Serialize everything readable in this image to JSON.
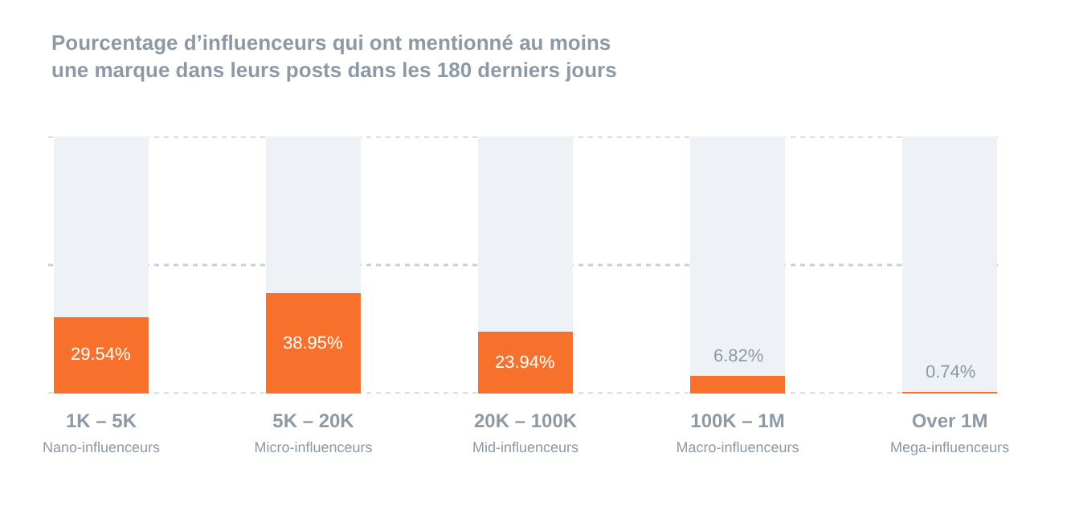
{
  "chart_data": {
    "type": "bar",
    "stacked": true,
    "title": "Pourcentage d’influenceurs qui ont mentionné au moins\nune marque dans leurs posts dans les 180 derniers jours",
    "categories": [
      "1K – 5K\nNano-influenceurs",
      "5K – 20K\nMicro-influenceurs",
      "20K – 100K\nMid-influenceurs",
      "100K – 1M\nMacro-influenceurs",
      "Over 1M\nMega-influenceurs"
    ],
    "series": [
      {
        "color": "#f7702c",
        "values": [
          29.54,
          38.95,
          23.94,
          6.82,
          0.74
        ],
        "value_labels": [
          "29.54%",
          "38.95%",
          "23.94%",
          "6.82%",
          "0.74%"
        ]
      },
      {
        "color": "#eef1f5",
        "values": [
          70.46,
          61.05,
          76.06,
          93.18,
          99.26
        ]
      }
    ],
    "ylim": [
      0,
      100
    ],
    "yticks": [
      {
        "value": 0,
        "label": null
      },
      {
        "value": 50,
        "label": null
      },
      {
        "value": 100,
        "label": null
      }
    ],
    "grid": "y",
    "tick_labels": "x"
  }
}
